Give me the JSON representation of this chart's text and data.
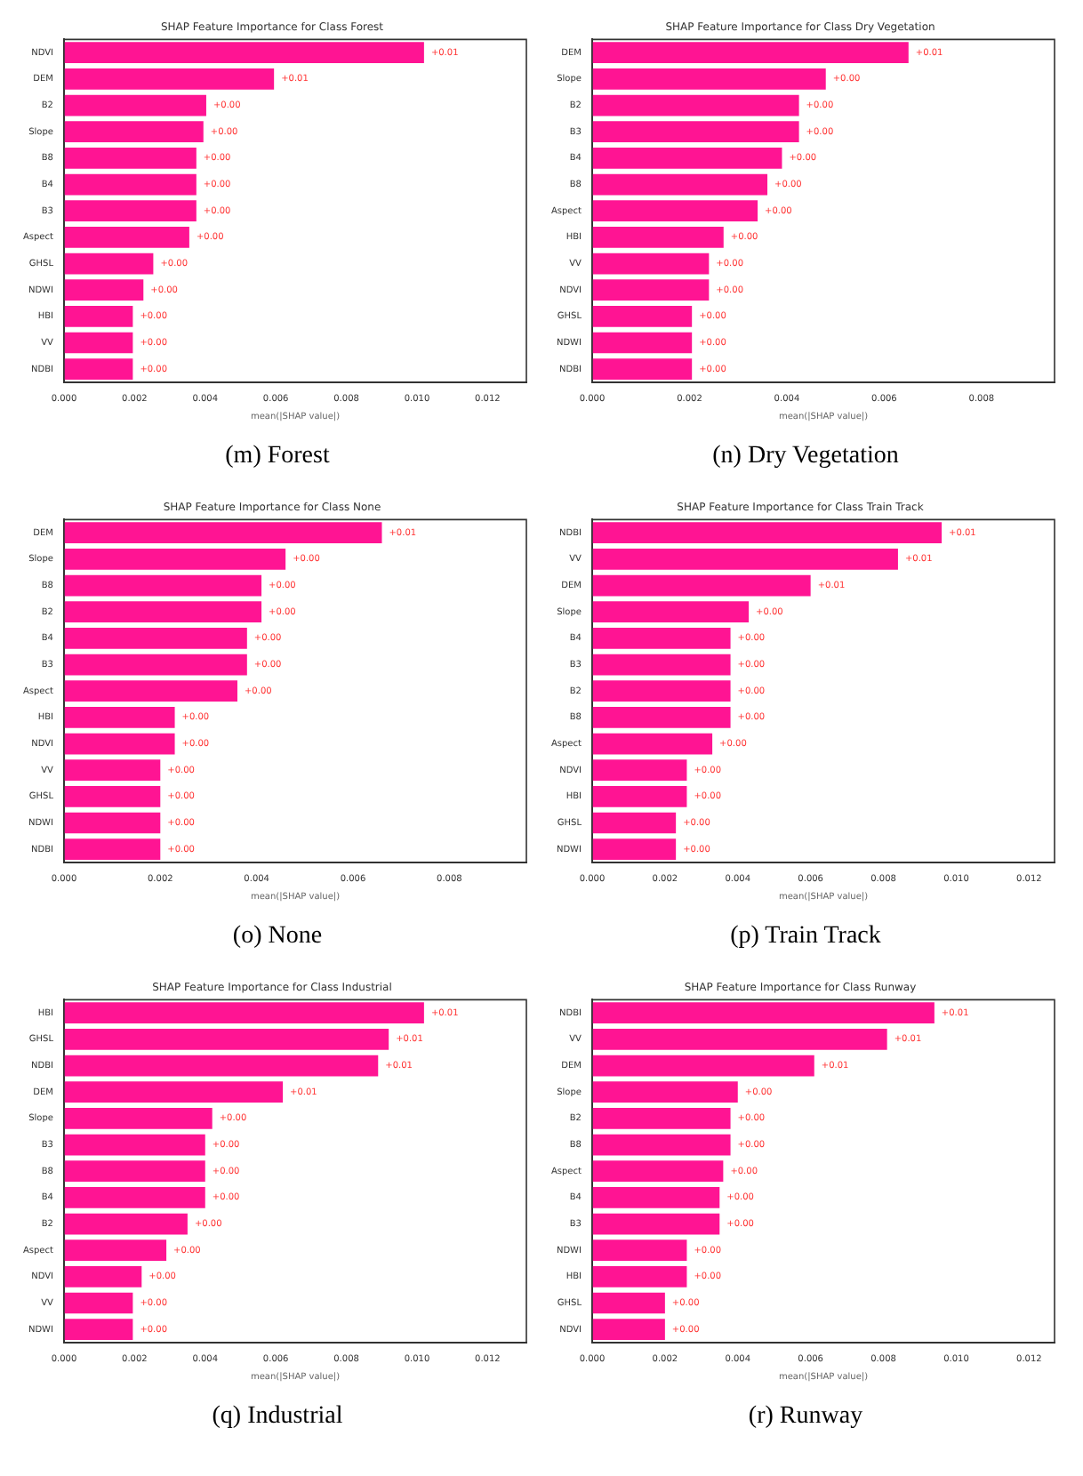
{
  "chart_data": [
    {
      "type": "bar",
      "orientation": "horizontal",
      "title": "SHAP Feature Importance for Class Forest",
      "xlabel": "mean(|SHAP value|)",
      "categories": [
        "NDVI",
        "DEM",
        "B2",
        "Slope",
        "B8",
        "B4",
        "B3",
        "Aspect",
        "GHSL",
        "NDWI",
        "HBI",
        "VV",
        "NDBI"
      ],
      "values": [
        0.0102,
        0.00595,
        0.00403,
        0.00395,
        0.00375,
        0.00375,
        0.00375,
        0.00355,
        0.00253,
        0.00225,
        0.00195,
        0.00195,
        0.00195
      ],
      "value_labels": [
        "+0.01",
        "+0.01",
        "+0.00",
        "+0.00",
        "+0.00",
        "+0.00",
        "+0.00",
        "+0.00",
        "+0.00",
        "+0.00",
        "+0.00",
        "+0.00",
        "+0.00"
      ],
      "color": "#ff1493",
      "xlim": [
        0,
        0.0131
      ],
      "xticks": [
        {
          "value": 0,
          "label": "0.000"
        },
        {
          "value": 0.002,
          "label": "0.002"
        },
        {
          "value": 0.004,
          "label": "0.004"
        },
        {
          "value": 0.006,
          "label": "0.006"
        },
        {
          "value": 0.008,
          "label": "0.008"
        },
        {
          "value": 0.01,
          "label": "0.010"
        },
        {
          "value": 0.012,
          "label": "0.012"
        }
      ],
      "annotations": [
        "(m) Forest"
      ]
    },
    {
      "type": "bar",
      "orientation": "horizontal",
      "title": "SHAP Feature Importance for Class Dry Vegetation",
      "xlabel": "mean(|SHAP value|)",
      "categories": [
        "DEM",
        "Slope",
        "B2",
        "B3",
        "B4",
        "B8",
        "Aspect",
        "HBI",
        "VV",
        "NDVI",
        "GHSL",
        "NDWI",
        "NDBI"
      ],
      "values": [
        0.0065,
        0.0048,
        0.00425,
        0.00425,
        0.0039,
        0.0036,
        0.0034,
        0.0027,
        0.0024,
        0.0024,
        0.00205,
        0.00205,
        0.00205
      ],
      "value_labels": [
        "+0.01",
        "+0.00",
        "+0.00",
        "+0.00",
        "+0.00",
        "+0.00",
        "+0.00",
        "+0.00",
        "+0.00",
        "+0.00",
        "+0.00",
        "+0.00",
        "+0.00"
      ],
      "color": "#ff1493",
      "xlim": [
        0,
        0.0095
      ],
      "xticks": [
        {
          "value": 0,
          "label": "0.000"
        },
        {
          "value": 0.002,
          "label": "0.002"
        },
        {
          "value": 0.004,
          "label": "0.004"
        },
        {
          "value": 0.006,
          "label": "0.006"
        },
        {
          "value": 0.008,
          "label": "0.008"
        }
      ],
      "annotations": [
        "(n) Dry Vegetation"
      ]
    },
    {
      "type": "bar",
      "orientation": "horizontal",
      "title": "SHAP Feature Importance for Class None",
      "xlabel": "mean(|SHAP value|)",
      "categories": [
        "DEM",
        "Slope",
        "B8",
        "B2",
        "B4",
        "B3",
        "Aspect",
        "HBI",
        "NDVI",
        "VV",
        "GHSL",
        "NDWI",
        "NDBI"
      ],
      "values": [
        0.0066,
        0.0046,
        0.0041,
        0.0041,
        0.0038,
        0.0038,
        0.0036,
        0.0023,
        0.0023,
        0.002,
        0.002,
        0.002,
        0.002
      ],
      "value_labels": [
        "+0.01",
        "+0.00",
        "+0.00",
        "+0.00",
        "+0.00",
        "+0.00",
        "+0.00",
        "+0.00",
        "+0.00",
        "+0.00",
        "+0.00",
        "+0.00",
        "+0.00"
      ],
      "color": "#ff1493",
      "xlim": [
        0,
        0.0096
      ],
      "xticks": [
        {
          "value": 0,
          "label": "0.000"
        },
        {
          "value": 0.002,
          "label": "0.002"
        },
        {
          "value": 0.004,
          "label": "0.004"
        },
        {
          "value": 0.006,
          "label": "0.006"
        },
        {
          "value": 0.008,
          "label": "0.008"
        }
      ],
      "annotations": [
        "(o) None"
      ]
    },
    {
      "type": "bar",
      "orientation": "horizontal",
      "title": "SHAP Feature Importance for Class Train Track",
      "xlabel": "mean(|SHAP value|)",
      "categories": [
        "NDBI",
        "VV",
        "DEM",
        "Slope",
        "B4",
        "B3",
        "B2",
        "B8",
        "Aspect",
        "NDVI",
        "HBI",
        "GHSL",
        "NDWI"
      ],
      "values": [
        0.0096,
        0.0084,
        0.006,
        0.0043,
        0.0038,
        0.0038,
        0.0038,
        0.0038,
        0.0033,
        0.0026,
        0.0026,
        0.0023,
        0.0023
      ],
      "value_labels": [
        "+0.01",
        "+0.01",
        "+0.01",
        "+0.00",
        "+0.00",
        "+0.00",
        "+0.00",
        "+0.00",
        "+0.00",
        "+0.00",
        "+0.00",
        "+0.00",
        "+0.00"
      ],
      "color": "#ff1493",
      "xlim": [
        0,
        0.0127
      ],
      "xticks": [
        {
          "value": 0,
          "label": "0.000"
        },
        {
          "value": 0.002,
          "label": "0.002"
        },
        {
          "value": 0.004,
          "label": "0.004"
        },
        {
          "value": 0.006,
          "label": "0.006"
        },
        {
          "value": 0.008,
          "label": "0.008"
        },
        {
          "value": 0.01,
          "label": "0.010"
        },
        {
          "value": 0.012,
          "label": "0.012"
        }
      ],
      "annotations": [
        "(p) Train Track"
      ]
    },
    {
      "type": "bar",
      "orientation": "horizontal",
      "title": "SHAP Feature Importance for Class Industrial",
      "xlabel": "mean(|SHAP value|)",
      "categories": [
        "HBI",
        "GHSL",
        "NDBI",
        "DEM",
        "Slope",
        "B3",
        "B8",
        "B4",
        "B2",
        "Aspect",
        "NDVI",
        "VV",
        "NDWI"
      ],
      "values": [
        0.0102,
        0.0092,
        0.0089,
        0.0062,
        0.0042,
        0.004,
        0.004,
        0.004,
        0.0035,
        0.0029,
        0.0022,
        0.00195,
        0.00195
      ],
      "value_labels": [
        "+0.01",
        "+0.01",
        "+0.01",
        "+0.01",
        "+0.00",
        "+0.00",
        "+0.00",
        "+0.00",
        "+0.00",
        "+0.00",
        "+0.00",
        "+0.00",
        "+0.00"
      ],
      "color": "#ff1493",
      "xlim": [
        0,
        0.0131
      ],
      "xticks": [
        {
          "value": 0,
          "label": "0.000"
        },
        {
          "value": 0.002,
          "label": "0.002"
        },
        {
          "value": 0.004,
          "label": "0.004"
        },
        {
          "value": 0.006,
          "label": "0.006"
        },
        {
          "value": 0.008,
          "label": "0.008"
        },
        {
          "value": 0.01,
          "label": "0.010"
        },
        {
          "value": 0.012,
          "label": "0.012"
        }
      ],
      "annotations": [
        "(q) Industrial"
      ]
    },
    {
      "type": "bar",
      "orientation": "horizontal",
      "title": "SHAP Feature Importance for Class Runway",
      "xlabel": "mean(|SHAP value|)",
      "categories": [
        "NDBI",
        "VV",
        "DEM",
        "Slope",
        "B2",
        "B8",
        "Aspect",
        "B4",
        "B3",
        "NDWI",
        "HBI",
        "GHSL",
        "NDVI"
      ],
      "values": [
        0.0094,
        0.0081,
        0.0061,
        0.004,
        0.0038,
        0.0038,
        0.0036,
        0.0035,
        0.0035,
        0.0026,
        0.0026,
        0.002,
        0.002
      ],
      "value_labels": [
        "+0.01",
        "+0.01",
        "+0.01",
        "+0.00",
        "+0.00",
        "+0.00",
        "+0.00",
        "+0.00",
        "+0.00",
        "+0.00",
        "+0.00",
        "+0.00",
        "+0.00"
      ],
      "color": "#ff1493",
      "xlim": [
        0,
        0.0127
      ],
      "xticks": [
        {
          "value": 0,
          "label": "0.000"
        },
        {
          "value": 0.002,
          "label": "0.002"
        },
        {
          "value": 0.004,
          "label": "0.004"
        },
        {
          "value": 0.006,
          "label": "0.006"
        },
        {
          "value": 0.008,
          "label": "0.008"
        },
        {
          "value": 0.01,
          "label": "0.010"
        },
        {
          "value": 0.012,
          "label": "0.012"
        }
      ],
      "annotations": [
        "(r) Runway"
      ]
    }
  ]
}
